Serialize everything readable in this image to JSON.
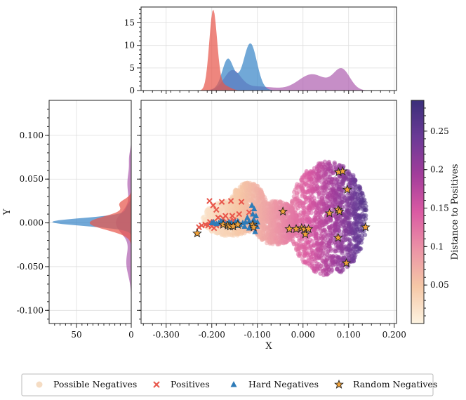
{
  "chart_data": {
    "type": "scatter",
    "xlabel": "X",
    "ylabel": "Y",
    "xlim": [
      -0.355,
      0.205
    ],
    "ylim": [
      -0.115,
      0.14
    ],
    "x_ticks": [
      -0.3,
      -0.2,
      -0.1,
      0.0,
      0.1,
      0.2
    ],
    "x_tick_labels": [
      "-0.300",
      "-0.200",
      "-0.100",
      "0.000",
      "0.100",
      "0.200"
    ],
    "y_ticks": [
      0.1,
      0.05,
      0.0,
      -0.05,
      -0.1
    ],
    "y_tick_labels": [
      "0.100",
      "0.050",
      "0.000",
      "-0.050",
      "-0.100"
    ],
    "top_marginal": {
      "ylim": [
        0,
        18.5
      ],
      "ticks": [
        15,
        10,
        5,
        0
      ],
      "tick_labels": [
        "15",
        "10",
        "5",
        "0"
      ],
      "densities": [
        {
          "series": "Positives",
          "color": "#e8574c",
          "components": [
            [
              -0.197,
              0.0085,
              17.6
            ],
            [
              -0.175,
              0.014,
              1.2
            ]
          ]
        },
        {
          "series": "Hard Negatives",
          "color": "#3a86c8",
          "components": [
            [
              -0.115,
              0.014,
              9.4
            ],
            [
              -0.165,
              0.012,
              6.0
            ],
            [
              -0.14,
              0.03,
              1.5
            ]
          ]
        },
        {
          "series": "Random Negatives",
          "color": "#b062b2",
          "components": [
            [
              -0.155,
              0.018,
              4.2
            ],
            [
              0.02,
              0.03,
              3.6
            ],
            [
              0.085,
              0.018,
              4.6
            ],
            [
              -0.1,
              0.04,
              0.9
            ]
          ]
        }
      ]
    },
    "left_marginal": {
      "xlim": [
        75,
        0
      ],
      "ticks": [
        50,
        0
      ],
      "tick_labels": [
        "50",
        "0"
      ],
      "densities": [
        {
          "series": "Positives",
          "color": "#e8574c",
          "components": [
            [
              0.0,
              0.008,
              38.0
            ],
            [
              0.022,
              0.005,
              10.0
            ]
          ]
        },
        {
          "series": "Hard Negatives",
          "color": "#3a86c8",
          "components": [
            [
              0.001,
              0.0045,
              72.0
            ],
            [
              0.015,
              0.006,
              5.0
            ]
          ]
        },
        {
          "series": "Random Negatives",
          "color": "#b062b2",
          "components": [
            [
              0.0,
              0.012,
              14.0
            ],
            [
              0.045,
              0.015,
              3.5
            ],
            [
              -0.045,
              0.015,
              4.5
            ],
            [
              0.075,
              0.008,
              1.5
            ]
          ]
        }
      ]
    },
    "colorbar": {
      "label": "Distance to Positives",
      "range": [
        0.0,
        0.29
      ],
      "ticks": [
        0.05,
        0.1,
        0.15,
        0.2,
        0.25
      ],
      "tick_labels": [
        "0.05",
        "0.1",
        "0.15",
        "0.2",
        "0.25"
      ],
      "colors": [
        "#fdf3e1",
        "#f5c7a6",
        "#eb93a6",
        "#da5aa3",
        "#a23d9b",
        "#6b3a96",
        "#3b2f7a"
      ]
    },
    "series": [
      {
        "name": "Possible Negatives",
        "marker": "circle",
        "note": "dense cloud",
        "cloud_lobes": [
          [
            -0.16,
            0.005,
            0.06,
            0.02
          ],
          [
            -0.12,
            0.018,
            0.04,
            0.028
          ],
          [
            0.055,
            0.005,
            0.085,
            0.065
          ],
          [
            -0.06,
            0.0,
            0.05,
            0.025
          ]
        ]
      },
      {
        "name": "Positives",
        "marker": "x",
        "color": "#e8574c",
        "points": [
          [
            -0.205,
            0.025
          ],
          [
            -0.197,
            0.02
          ],
          [
            -0.19,
            0.015
          ],
          [
            -0.178,
            0.024
          ],
          [
            -0.158,
            0.025
          ],
          [
            -0.135,
            0.024
          ],
          [
            -0.118,
            0.012
          ],
          [
            -0.228,
            -0.005
          ],
          [
            -0.222,
            -0.003
          ],
          [
            -0.214,
            -0.002
          ],
          [
            -0.208,
            -0.003
          ],
          [
            -0.2,
            -0.004
          ],
          [
            -0.195,
            -0.006
          ],
          [
            -0.19,
            -0.003
          ],
          [
            -0.183,
            -0.002
          ],
          [
            -0.177,
            0.0
          ],
          [
            -0.173,
            -0.001
          ],
          [
            -0.165,
            0.0
          ],
          [
            -0.16,
            0.002
          ],
          [
            -0.204,
            0.001
          ],
          [
            -0.186,
            0.006
          ],
          [
            -0.17,
            0.008
          ],
          [
            -0.152,
            0.003
          ],
          [
            -0.145,
            0.001
          ],
          [
            -0.14,
            0.01
          ],
          [
            -0.196,
            0.001
          ],
          [
            -0.175,
            0.005
          ],
          [
            -0.155,
            0.008
          ]
        ]
      },
      {
        "name": "Hard Negatives",
        "marker": "triangle",
        "color": "#2e7bb8",
        "points": [
          [
            -0.112,
            0.02
          ],
          [
            -0.107,
            0.016
          ],
          [
            -0.11,
            0.01
          ],
          [
            -0.103,
            0.008
          ],
          [
            -0.108,
            0.004
          ],
          [
            -0.1,
            0.001
          ],
          [
            -0.106,
            -0.001
          ],
          [
            -0.115,
            -0.003
          ],
          [
            -0.118,
            0.002
          ],
          [
            -0.122,
            0.006
          ],
          [
            -0.126,
            0.001
          ],
          [
            -0.132,
            0.0
          ],
          [
            -0.138,
            -0.002
          ],
          [
            -0.143,
            0.002
          ],
          [
            -0.148,
            0.001
          ],
          [
            -0.152,
            -0.002
          ],
          [
            -0.157,
            0.0
          ],
          [
            -0.162,
            0.001
          ],
          [
            -0.168,
            -0.001
          ],
          [
            -0.175,
            0.001
          ],
          [
            -0.18,
            0.002
          ],
          [
            -0.185,
            0.0
          ],
          [
            -0.19,
            -0.001
          ],
          [
            -0.196,
            0.001
          ],
          [
            -0.2,
            0.0
          ],
          [
            -0.105,
            -0.01
          ],
          [
            -0.101,
            -0.004
          ],
          [
            -0.118,
            -0.006
          ],
          [
            -0.128,
            -0.004
          ],
          [
            -0.16,
            -0.004
          ],
          [
            -0.145,
            -0.003
          ]
        ]
      },
      {
        "name": "Random Negatives",
        "marker": "star",
        "color": "#f2a33a",
        "points": [
          [
            -0.232,
            -0.012
          ],
          [
            -0.175,
            -0.002
          ],
          [
            -0.165,
            -0.003
          ],
          [
            -0.16,
            -0.004
          ],
          [
            -0.153,
            -0.004
          ],
          [
            -0.143,
            -0.002
          ],
          [
            -0.11,
            -0.002
          ],
          [
            -0.108,
            -0.005
          ],
          [
            -0.044,
            0.013
          ],
          [
            -0.03,
            -0.007
          ],
          [
            -0.015,
            -0.007
          ],
          [
            -0.003,
            -0.006
          ],
          [
            0.003,
            -0.007
          ],
          [
            0.005,
            -0.013
          ],
          [
            0.012,
            -0.007
          ],
          [
            0.058,
            0.011
          ],
          [
            0.077,
            0.015
          ],
          [
            0.08,
            0.013
          ],
          [
            0.078,
            0.058
          ],
          [
            0.087,
            0.059
          ],
          [
            0.097,
            0.038
          ],
          [
            0.077,
            -0.017
          ],
          [
            0.137,
            -0.005
          ],
          [
            0.095,
            -0.046
          ]
        ]
      }
    ],
    "legend": {
      "position": "bottom",
      "entries": [
        "Possible Negatives",
        "Positives",
        "Hard Negatives",
        "Random Negatives"
      ]
    }
  }
}
